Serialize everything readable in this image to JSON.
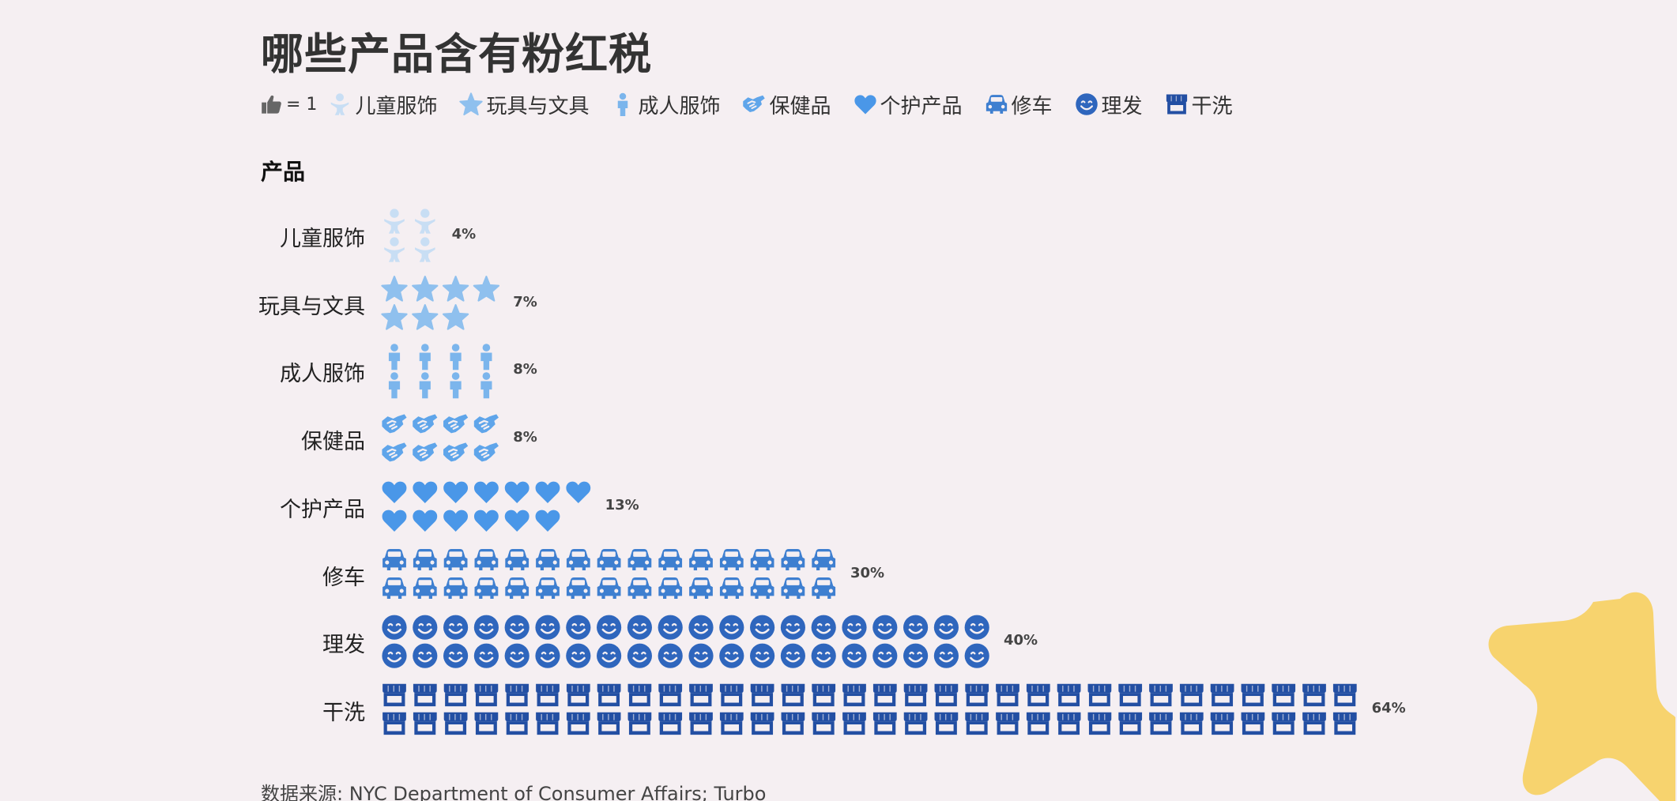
{
  "title": "哪些产品含有粉红税",
  "legend": {
    "scale_label": "= 1",
    "scale_icon": "thumbs-up-icon"
  },
  "chart_data": {
    "type": "pictograph",
    "title": "哪些产品含有粉红税",
    "ylabel": "产品",
    "unit_per_icon": 1,
    "categories": [
      {
        "label": "儿童服饰",
        "value": 4,
        "value_label": "4%",
        "icon": "baby-icon",
        "color": "#c8def4"
      },
      {
        "label": "玩具与文具",
        "value": 7,
        "value_label": "7%",
        "icon": "star-icon",
        "color": "#8fc0ee"
      },
      {
        "label": "成人服饰",
        "value": 8,
        "value_label": "8%",
        "icon": "person-icon",
        "color": "#7bb5ec"
      },
      {
        "label": "保健品",
        "value": 8,
        "value_label": "8%",
        "icon": "handshake-icon",
        "color": "#5fa5ea"
      },
      {
        "label": "个护产品",
        "value": 13,
        "value_label": "13%",
        "icon": "heart-icon",
        "color": "#4a97e8"
      },
      {
        "label": "修车",
        "value": 30,
        "value_label": "30%",
        "icon": "car-icon",
        "color": "#3e7fd0"
      },
      {
        "label": "理发",
        "value": 40,
        "value_label": "40%",
        "icon": "smile-icon",
        "color": "#2f66bd"
      },
      {
        "label": "干洗",
        "value": 64,
        "value_label": "64%",
        "icon": "store-icon",
        "color": "#234fa3"
      }
    ]
  },
  "source": "数据来源: NYC Department of Consumer Affairs; Turbo",
  "colors": {
    "background": "#f5eff2",
    "decoration_star": "#f7d36e",
    "scale_icon": "#666666"
  }
}
